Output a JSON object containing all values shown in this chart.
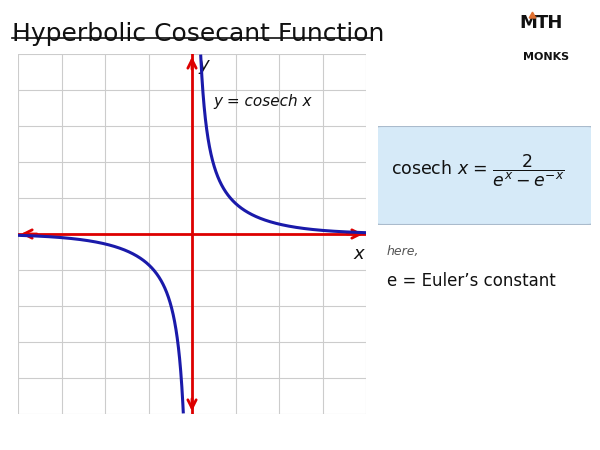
{
  "title": "Hyperbolic Cosecant Function",
  "title_fontsize": 18,
  "bg_color": "#ffffff",
  "graph_bg": "#ffffff",
  "grid_color": "#cccccc",
  "axis_color": "#dd0000",
  "curve_color": "#1a1aaa",
  "curve_linewidth": 2.2,
  "axis_linewidth": 2.0,
  "xlim": [
    -4,
    4
  ],
  "ylim": [
    -5,
    5
  ],
  "formula_box_color": "#d6eaf8",
  "formula_box_edge": "#aabbcc",
  "label_x": "x",
  "label_y": "y",
  "curve_label": "y = cosech x",
  "orange_color": "#e07030"
}
